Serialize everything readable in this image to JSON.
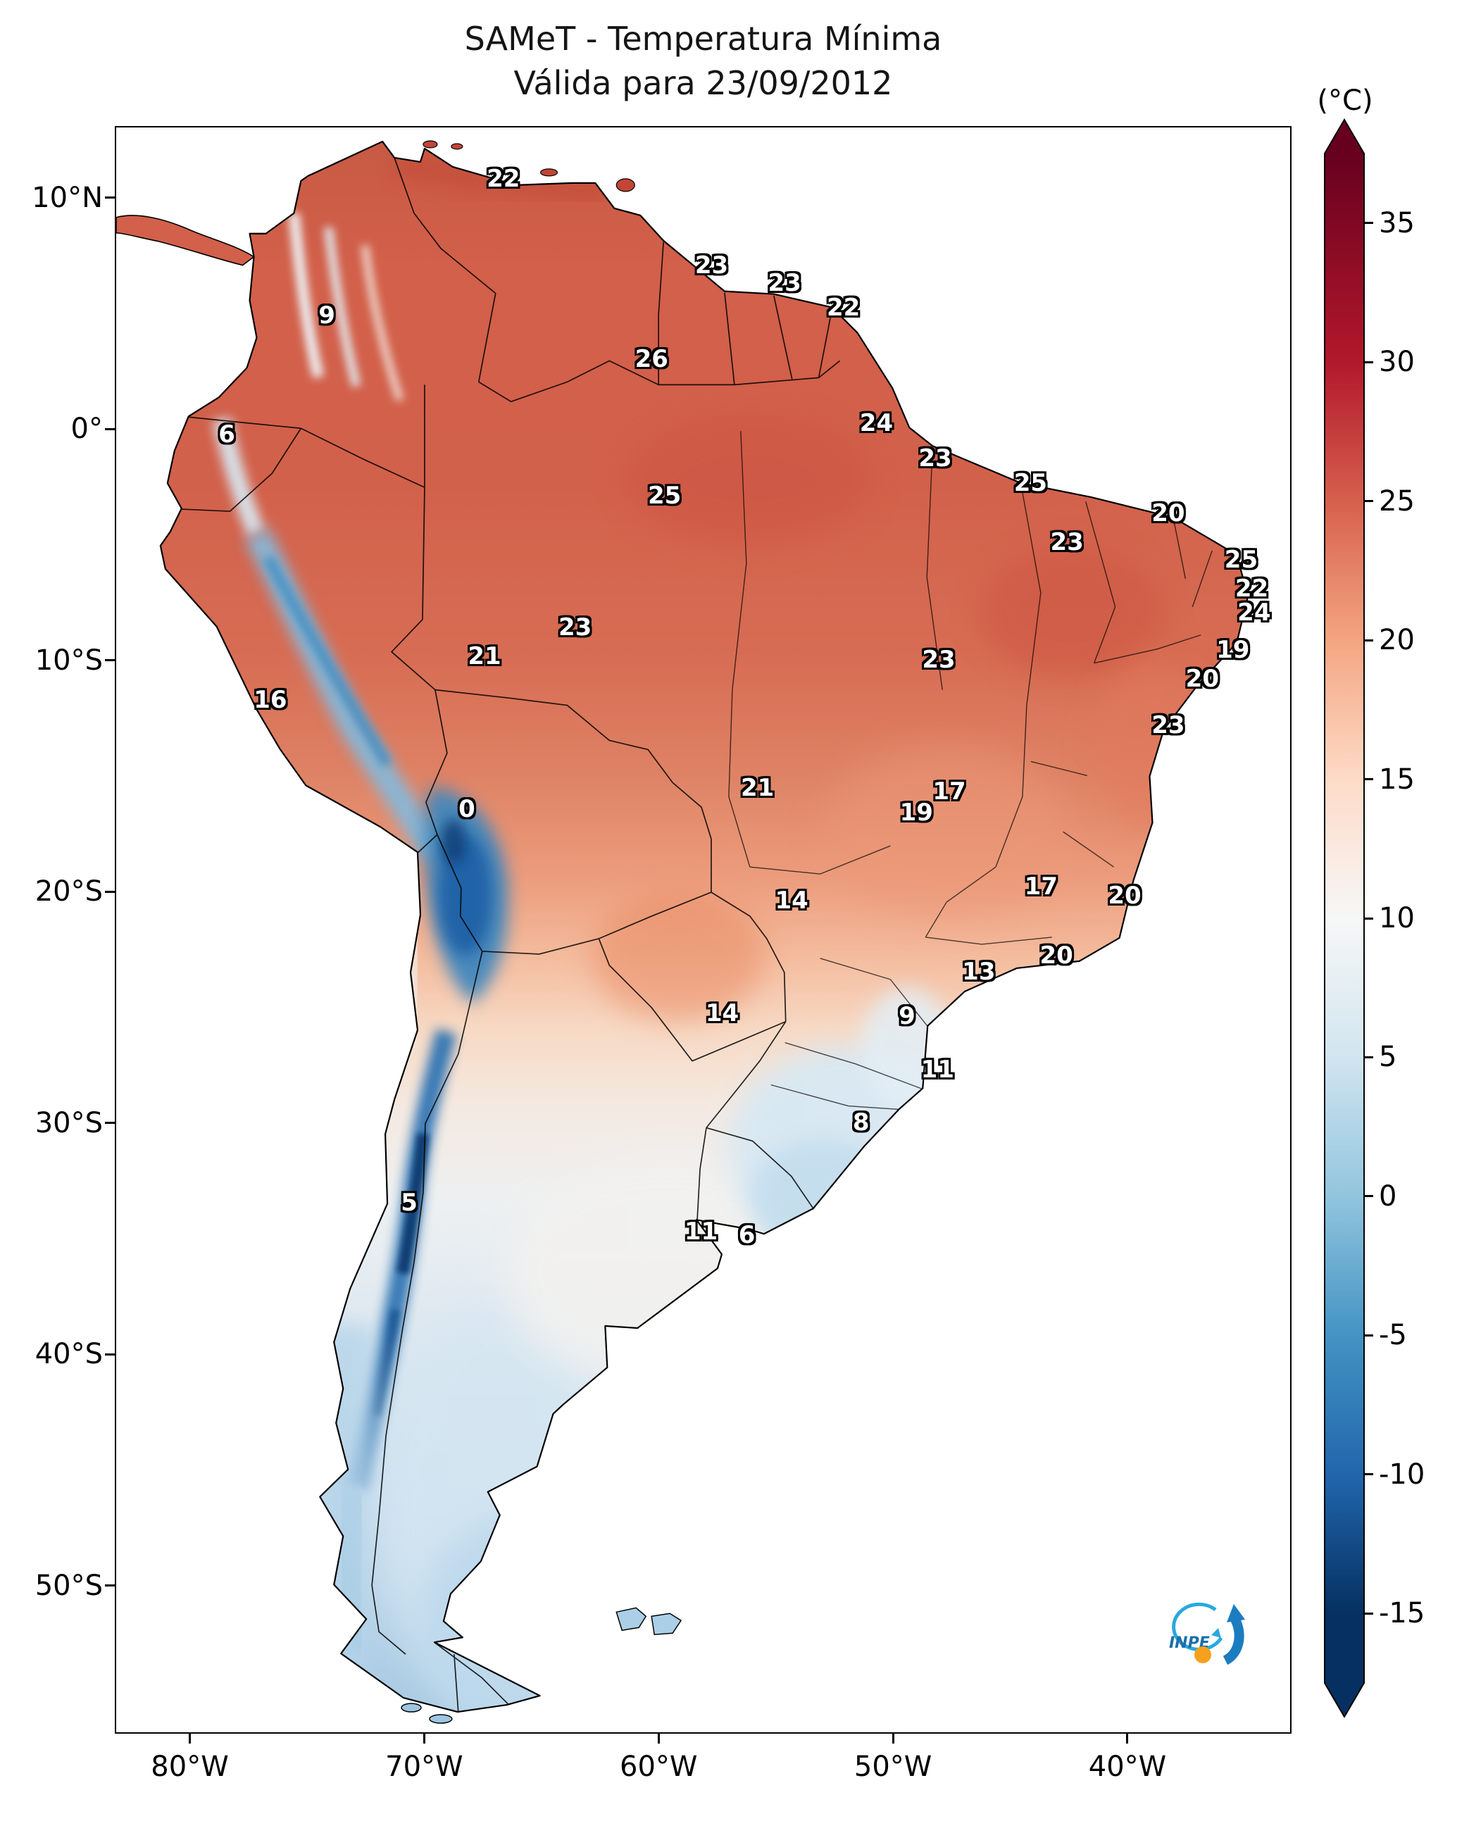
{
  "title": {
    "line1": "SAMeT - Temperatura Mínima",
    "line2": "Válida para 23/09/2012"
  },
  "colorbar_unit": "(°C)",
  "logo": {
    "text": "INPE"
  },
  "chart_data": {
    "type": "heatmap",
    "title": "SAMeT - Temperatura Mínima",
    "subtitle": "Válida para 23/09/2012",
    "region": "South America",
    "colormap": "RdBu_r",
    "colorbar": {
      "unit": "(°C)",
      "vmin": -17.5,
      "vmax": 37.5,
      "tick_values": [
        35,
        30,
        25,
        20,
        15,
        10,
        5,
        0,
        -5,
        -10,
        -15
      ],
      "stops": [
        {
          "v": 37.5,
          "color": "#67001f"
        },
        {
          "v": 30,
          "color": "#b2182b"
        },
        {
          "v": 25,
          "color": "#d6604d"
        },
        {
          "v": 20,
          "color": "#f4a582"
        },
        {
          "v": 15,
          "color": "#fddbc7"
        },
        {
          "v": 10,
          "color": "#f7f7f7"
        },
        {
          "v": 5,
          "color": "#d1e5f0"
        },
        {
          "v": 0,
          "color": "#92c5de"
        },
        {
          "v": -5,
          "color": "#4393c3"
        },
        {
          "v": -10,
          "color": "#2166ac"
        },
        {
          "v": -15,
          "color": "#053061"
        },
        {
          "v": -17.5,
          "color": "#053061"
        }
      ]
    },
    "axes": {
      "lon_range_w": [
        83.2,
        33.0
      ],
      "lat_range": [
        13.1,
        -56.4
      ],
      "lon_ticks": [
        {
          "label": "80°W",
          "deg": 80
        },
        {
          "label": "70°W",
          "deg": 70
        },
        {
          "label": "60°W",
          "deg": 60
        },
        {
          "label": "50°W",
          "deg": 50
        },
        {
          "label": "40°W",
          "deg": 40
        }
      ],
      "lat_ticks": [
        {
          "label": "10°N",
          "deg": 10
        },
        {
          "label": "0°",
          "deg": 0
        },
        {
          "label": "10°S",
          "deg": -10
        },
        {
          "label": "20°S",
          "deg": -20
        },
        {
          "label": "30°S",
          "deg": -30
        },
        {
          "label": "40°S",
          "deg": -40
        },
        {
          "label": "50°S",
          "deg": -50
        }
      ]
    },
    "station_values_c": [
      {
        "t": "22",
        "x": 32.9,
        "y": 3.2
      },
      {
        "t": "23",
        "x": 50.6,
        "y": 8.6
      },
      {
        "t": "23",
        "x": 56.8,
        "y": 9.7
      },
      {
        "t": "22",
        "x": 61.8,
        "y": 11.2
      },
      {
        "t": "9",
        "x": 17.9,
        "y": 11.7
      },
      {
        "t": "26",
        "x": 45.5,
        "y": 14.4
      },
      {
        "t": "24",
        "x": 64.6,
        "y": 18.4
      },
      {
        "t": "6",
        "x": 9.4,
        "y": 19.1
      },
      {
        "t": "23",
        "x": 69.6,
        "y": 20.6
      },
      {
        "t": "25",
        "x": 77.7,
        "y": 22.1
      },
      {
        "t": "25",
        "x": 46.6,
        "y": 22.9
      },
      {
        "t": "20",
        "x": 89.4,
        "y": 24.0
      },
      {
        "t": "23",
        "x": 80.8,
        "y": 25.8
      },
      {
        "t": "25",
        "x": 95.6,
        "y": 26.9
      },
      {
        "t": "22",
        "x": 96.5,
        "y": 28.7
      },
      {
        "t": "24",
        "x": 96.7,
        "y": 30.2
      },
      {
        "t": "23",
        "x": 39.0,
        "y": 31.1
      },
      {
        "t": "19",
        "x": 94.9,
        "y": 32.5
      },
      {
        "t": "21",
        "x": 31.3,
        "y": 32.9
      },
      {
        "t": "23",
        "x": 69.9,
        "y": 33.1
      },
      {
        "t": "20",
        "x": 92.3,
        "y": 34.3
      },
      {
        "t": "16",
        "x": 13.1,
        "y": 35.6
      },
      {
        "t": "23",
        "x": 89.4,
        "y": 37.2
      },
      {
        "t": "21",
        "x": 54.5,
        "y": 41.1
      },
      {
        "t": "17",
        "x": 70.8,
        "y": 41.3
      },
      {
        "t": "0",
        "x": 29.8,
        "y": 42.4
      },
      {
        "t": "19",
        "x": 68.0,
        "y": 42.6
      },
      {
        "t": "17",
        "x": 78.6,
        "y": 47.2
      },
      {
        "t": "20",
        "x": 85.7,
        "y": 47.8
      },
      {
        "t": "14",
        "x": 57.4,
        "y": 48.1
      },
      {
        "t": "20",
        "x": 79.9,
        "y": 51.5
      },
      {
        "t": "13",
        "x": 73.3,
        "y": 52.5
      },
      {
        "t": "14",
        "x": 51.5,
        "y": 55.1
      },
      {
        "t": "9",
        "x": 67.2,
        "y": 55.3
      },
      {
        "t": "11",
        "x": 69.8,
        "y": 58.6
      },
      {
        "t": "8",
        "x": 63.3,
        "y": 61.9
      },
      {
        "t": "5",
        "x": 24.9,
        "y": 66.9
      },
      {
        "t": "11",
        "x": 49.7,
        "y": 68.7
      },
      {
        "t": "6",
        "x": 53.6,
        "y": 68.9
      }
    ]
  }
}
